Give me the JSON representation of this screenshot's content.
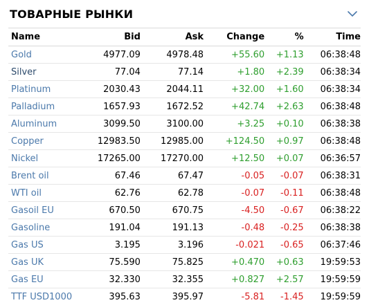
{
  "header": {
    "title": "ТОВАРНЫЕ РЫНКИ",
    "toggle_icon": "chevron-down-icon"
  },
  "columns": {
    "name": "Name",
    "bid": "Bid",
    "ask": "Ask",
    "change": "Change",
    "percent": "%",
    "time": "Time"
  },
  "colors": {
    "positive": "#2e9e2e",
    "negative": "#d92020",
    "link": "#4b79ab"
  },
  "rows": [
    {
      "name": "Gold",
      "bid": "4977.09",
      "ask": "4978.48",
      "change": "+55.60",
      "percent": "+1.13",
      "time": "06:38:48",
      "dir": "up"
    },
    {
      "name": "Silver",
      "bid": "77.04",
      "ask": "77.14",
      "change": "+1.80",
      "percent": "+2.39",
      "time": "06:38:34",
      "dir": "up"
    },
    {
      "name": "Platinum",
      "bid": "2030.43",
      "ask": "2044.11",
      "change": "+32.00",
      "percent": "+1.60",
      "time": "06:38:34",
      "dir": "up"
    },
    {
      "name": "Palladium",
      "bid": "1657.93",
      "ask": "1672.52",
      "change": "+42.74",
      "percent": "+2.63",
      "time": "06:38:48",
      "dir": "up"
    },
    {
      "name": "Aluminum",
      "bid": "3099.50",
      "ask": "3100.00",
      "change": "+3.25",
      "percent": "+0.10",
      "time": "06:38:38",
      "dir": "up"
    },
    {
      "name": "Copper",
      "bid": "12983.50",
      "ask": "12985.00",
      "change": "+124.50",
      "percent": "+0.97",
      "time": "06:38:48",
      "dir": "up"
    },
    {
      "name": "Nickel",
      "bid": "17265.00",
      "ask": "17270.00",
      "change": "+12.50",
      "percent": "+0.07",
      "time": "06:36:57",
      "dir": "up"
    },
    {
      "name": "Brent oil",
      "bid": "67.46",
      "ask": "67.47",
      "change": "-0.05",
      "percent": "-0.07",
      "time": "06:38:31",
      "dir": "down"
    },
    {
      "name": "WTI oil",
      "bid": "62.76",
      "ask": "62.78",
      "change": "-0.07",
      "percent": "-0.11",
      "time": "06:38:48",
      "dir": "down"
    },
    {
      "name": "Gasoil EU",
      "bid": "670.50",
      "ask": "670.75",
      "change": "-4.50",
      "percent": "-0.67",
      "time": "06:38:22",
      "dir": "down"
    },
    {
      "name": "Gasoline",
      "bid": "191.04",
      "ask": "191.13",
      "change": "-0.48",
      "percent": "-0.25",
      "time": "06:38:38",
      "dir": "down"
    },
    {
      "name": "Gas US",
      "bid": "3.195",
      "ask": "3.196",
      "change": "-0.021",
      "percent": "-0.65",
      "time": "06:37:46",
      "dir": "down"
    },
    {
      "name": "Gas UK",
      "bid": "75.590",
      "ask": "75.825",
      "change": "+0.470",
      "percent": "+0.63",
      "time": "19:59:53",
      "dir": "up"
    },
    {
      "name": "Gas EU",
      "bid": "32.330",
      "ask": "32.355",
      "change": "+0.827",
      "percent": "+2.57",
      "time": "19:59:59",
      "dir": "up"
    },
    {
      "name": "TTF USD1000",
      "bid": "395.63",
      "ask": "395.97",
      "change": "-5.81",
      "percent": "-1.45",
      "time": "19:59:59",
      "dir": "down"
    }
  ]
}
